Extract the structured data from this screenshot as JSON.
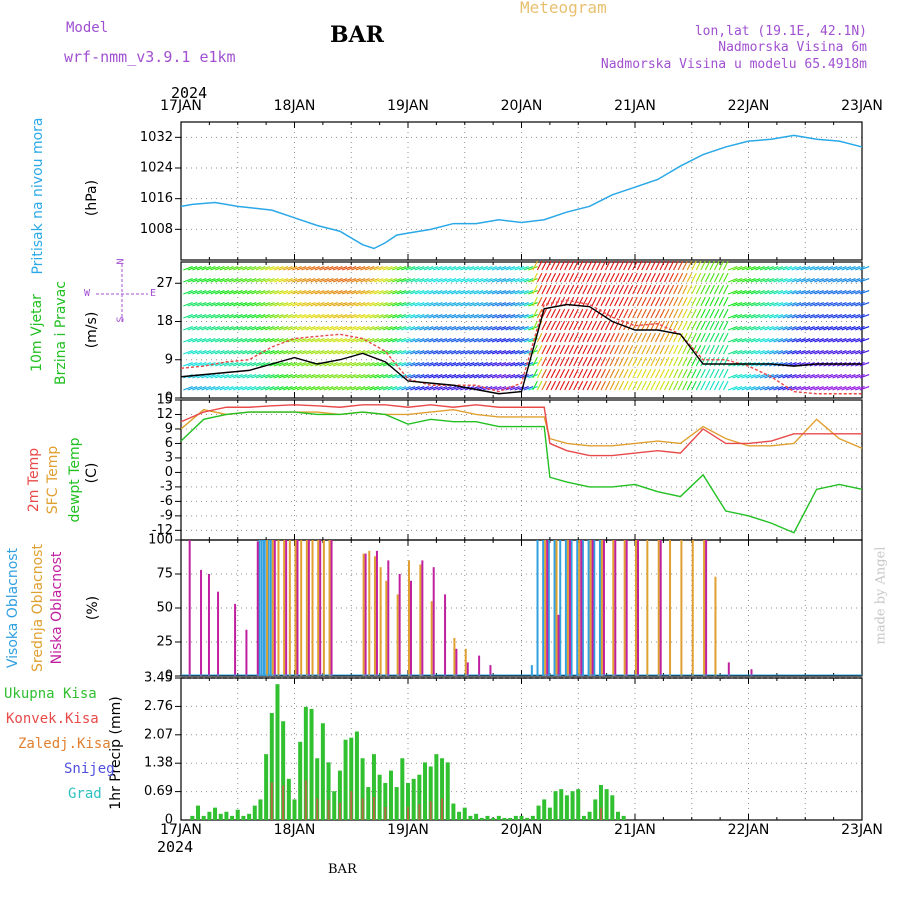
{
  "header": {
    "model_label": "Model",
    "model_name": "wrf-nmm_v3.9.1 e1km",
    "station": "BAR",
    "product": "Meteogram",
    "lonlat": "lon,lat (19.1E, 42.1N)",
    "elevation": "Nadmorska Visina 6m",
    "model_elevation": "Nadmorska Visina u modelu 65.4918m",
    "year": "2024",
    "footer_station": "BAR",
    "credit": "made by Angel"
  },
  "colors": {
    "pressure": "#2aa8e8",
    "wind_speed": "#000000",
    "wind_gust": "#e84a4a",
    "temp2m": "#e84a4a",
    "sfc_temp": "#e0a030",
    "dewpoint": "#22c022",
    "cloud_high": "#30a0e0",
    "cloud_mid": "#e0a030",
    "cloud_low": "#c020a0",
    "precip_total": "#30c030",
    "precip_conv": "#e84a4a",
    "precip_frz": "#e08030",
    "precip_snow": "#5050e0",
    "precip_graup": "#30c0c0",
    "title_purple": "#a050d0"
  },
  "axes": {
    "time_ticks": [
      "17JAN",
      "18JAN",
      "19JAN",
      "20JAN",
      "21JAN",
      "22JAN",
      "23JAN"
    ]
  },
  "labels": {
    "pressure_title": "Pritisak na nivou mora",
    "pressure_unit": "(hPa)",
    "wind_title1": "10m Vjetar",
    "wind_title2": "Brzina i Pravac",
    "wind_unit": "(m/s)",
    "compass_n": "N",
    "compass_s": "S",
    "compass_w": "W",
    "compass_e": "E",
    "temp_title1": "2m Temp",
    "temp_title2": "SFC Temp",
    "temp_title3": "dewpt Temp",
    "temp_unit": "(C)",
    "cloud_title1": "Visoka Oblacnost",
    "cloud_title2": "Srednja Oblacnost",
    "cloud_title3": "Niska Oblacnost",
    "cloud_unit": "(%)",
    "precip_unit": "1hr Precip (mm)",
    "precip_legend": [
      "Ukupna Kisa",
      "Konvek.Kisa",
      "Zaledj.Kisa",
      "Snijeg",
      "Grad"
    ]
  },
  "chart_data": [
    {
      "type": "line",
      "name": "pressure",
      "ylim": [
        1000,
        1036
      ],
      "yticks": [
        1008,
        1016,
        1024,
        1032
      ],
      "x_days": [
        0,
        0.1,
        0.3,
        0.5,
        0.8,
        1.0,
        1.2,
        1.4,
        1.6,
        1.7,
        1.8,
        1.9,
        2.0,
        2.2,
        2.4,
        2.6,
        2.8,
        3.0,
        3.2,
        3.4,
        3.6,
        3.8,
        4.0,
        4.2,
        4.4,
        4.6,
        4.8,
        5.0,
        5.2,
        5.4,
        5.6,
        5.8,
        6.0
      ],
      "values": [
        1014.0,
        1014.5,
        1015.0,
        1014.0,
        1013.0,
        1011.0,
        1009.0,
        1007.5,
        1004.0,
        1003.0,
        1004.5,
        1006.5,
        1007.0,
        1008.0,
        1009.5,
        1009.5,
        1010.5,
        1009.8,
        1010.5,
        1012.5,
        1014.0,
        1017.0,
        1019.0,
        1021.0,
        1024.5,
        1027.5,
        1029.5,
        1031.0,
        1031.5,
        1032.5,
        1031.5,
        1031.0,
        1029.5
      ]
    },
    {
      "type": "line",
      "name": "wind",
      "ylim": [
        0,
        32
      ],
      "yticks": [
        0,
        9,
        18,
        27
      ],
      "x_days": [
        0,
        0.2,
        0.4,
        0.6,
        0.8,
        1.0,
        1.2,
        1.4,
        1.6,
        1.8,
        2.0,
        2.2,
        2.4,
        2.6,
        2.8,
        3.0,
        3.2,
        3.4,
        3.6,
        3.8,
        4.0,
        4.2,
        4.4,
        4.6,
        4.8,
        5.0,
        5.2,
        5.4,
        5.6,
        5.8,
        6.0
      ],
      "speed": [
        5.0,
        5.5,
        6.0,
        6.5,
        8.0,
        9.5,
        8.0,
        9.0,
        10.5,
        8.5,
        4.0,
        3.5,
        3.0,
        2.0,
        1.0,
        1.5,
        21.0,
        22.0,
        21.5,
        18.0,
        16.0,
        16.0,
        15.0,
        8.0,
        8.0,
        8.0,
        8.0,
        7.5,
        8.0,
        8.0,
        8.0
      ],
      "gust": [
        7.0,
        7.5,
        8.5,
        9.0,
        12.0,
        14.0,
        14.5,
        15.0,
        14.0,
        11.0,
        4.5,
        3.0,
        3.0,
        3.0,
        1.5,
        3.5,
        22.0,
        23.0,
        22.0,
        19.0,
        17.0,
        17.5,
        15.0,
        9.0,
        9.0,
        7.5,
        5.0,
        1.5,
        1.0,
        1.0,
        1.0
      ]
    },
    {
      "type": "line",
      "name": "temperature",
      "ylim": [
        -14,
        15
      ],
      "yticks": [
        -12,
        -9,
        -6,
        -3,
        0,
        3,
        6,
        9,
        12,
        15
      ],
      "x_days": [
        0,
        0.2,
        0.4,
        0.6,
        0.8,
        1.0,
        1.2,
        1.4,
        1.6,
        1.8,
        2.0,
        2.2,
        2.4,
        2.6,
        2.8,
        3.0,
        3.2,
        3.25,
        3.4,
        3.6,
        3.8,
        4.0,
        4.2,
        4.4,
        4.6,
        4.8,
        5.0,
        5.2,
        5.4,
        5.6,
        5.8,
        6.0
      ],
      "temp2m": [
        10.5,
        12.5,
        13.5,
        13.5,
        13.8,
        14.0,
        13.8,
        13.5,
        14.0,
        14.0,
        13.5,
        14.0,
        13.5,
        14.0,
        13.5,
        13.5,
        13.5,
        6.0,
        4.5,
        3.5,
        3.5,
        4.0,
        4.5,
        4.0,
        9.0,
        6.0,
        6.0,
        6.5,
        8.0,
        8.0,
        8.0,
        8.0
      ],
      "sfc_temp": [
        9.0,
        13.0,
        12.0,
        12.5,
        12.5,
        12.5,
        12.5,
        12.0,
        12.5,
        12.0,
        12.0,
        12.5,
        13.0,
        12.0,
        11.5,
        11.5,
        11.5,
        7.0,
        6.0,
        5.5,
        5.5,
        6.0,
        6.5,
        6.0,
        9.5,
        7.0,
        5.5,
        5.5,
        6.0,
        11.0,
        7.0,
        5.0
      ],
      "dewpoint": [
        6.5,
        11.0,
        12.0,
        12.5,
        12.5,
        12.5,
        12.0,
        12.0,
        12.5,
        12.0,
        10.0,
        11.0,
        10.5,
        10.5,
        9.5,
        9.5,
        9.5,
        -1.0,
        -2.0,
        -3.0,
        -3.0,
        -2.5,
        -4.0,
        -5.0,
        -0.5,
        -8.0,
        -9.0,
        -10.5,
        -12.5,
        -3.5,
        -2.5,
        -3.5
      ]
    },
    {
      "type": "bar",
      "name": "clouds",
      "ylim": [
        0,
        100
      ],
      "yticks": [
        0,
        25,
        50,
        75,
        100
      ],
      "high": {
        "x_days": [
          0.7,
          0.72,
          0.74,
          0.76,
          0.78,
          0.8,
          3.1,
          3.15,
          3.2,
          3.25,
          3.3,
          3.35,
          3.4,
          3.45,
          3.5,
          3.55,
          3.6,
          3.65,
          3.7
        ],
        "values": [
          100,
          100,
          100,
          100,
          100,
          100,
          8,
          100,
          100,
          100,
          100,
          100,
          100,
          100,
          100,
          100,
          100,
          100,
          100
        ]
      },
      "mid": {
        "x_days": [
          0.75,
          0.8,
          0.85,
          0.9,
          0.95,
          1.0,
          1.05,
          1.1,
          1.15,
          1.2,
          1.25,
          1.3,
          1.6,
          1.65,
          1.7,
          1.75,
          1.8,
          1.9,
          2.0,
          2.1,
          2.2,
          2.4,
          2.5,
          3.2,
          3.3,
          3.4,
          3.5,
          3.6,
          3.7,
          3.8,
          3.9,
          4.0,
          4.1,
          4.2,
          4.3,
          4.4,
          4.5,
          4.6,
          4.7
        ],
        "values": [
          100,
          100,
          100,
          100,
          100,
          100,
          100,
          100,
          100,
          100,
          100,
          100,
          90,
          92,
          88,
          80,
          70,
          60,
          85,
          82,
          55,
          28,
          20,
          100,
          100,
          100,
          100,
          100,
          100,
          100,
          100,
          100,
          100,
          100,
          100,
          100,
          100,
          100,
          73
        ]
      },
      "low": {
        "x_days": [
          0.05,
          0.15,
          0.22,
          0.3,
          0.45,
          0.55,
          0.65,
          0.8,
          0.9,
          1.0,
          1.1,
          1.2,
          1.3,
          1.6,
          1.7,
          1.8,
          1.9,
          2.0,
          2.1,
          2.2,
          2.3,
          2.4,
          2.5,
          2.6,
          2.7,
          3.2,
          3.3,
          3.4,
          3.5,
          3.6,
          3.7,
          3.8,
          3.9,
          4.0,
          4.2,
          4.6,
          4.8,
          5.0
        ],
        "values": [
          100,
          78,
          75,
          62,
          53,
          34,
          99,
          100,
          100,
          100,
          100,
          100,
          100,
          90,
          92,
          85,
          75,
          70,
          85,
          80,
          60,
          20,
          10,
          15,
          8,
          100,
          45,
          100,
          100,
          100,
          100,
          100,
          100,
          100,
          100,
          100,
          10,
          5
        ]
      }
    },
    {
      "type": "bar",
      "name": "precipitation",
      "ylim": [
        0,
        3.45
      ],
      "yticks": [
        0.69,
        1.38,
        2.07,
        2.76,
        3.45
      ],
      "x_days": [
        0.1,
        0.15,
        0.2,
        0.25,
        0.3,
        0.35,
        0.4,
        0.45,
        0.5,
        0.55,
        0.6,
        0.65,
        0.7,
        0.75,
        0.8,
        0.85,
        0.9,
        0.95,
        1.0,
        1.05,
        1.1,
        1.15,
        1.2,
        1.25,
        1.3,
        1.35,
        1.4,
        1.45,
        1.5,
        1.55,
        1.6,
        1.65,
        1.7,
        1.75,
        1.8,
        1.85,
        1.9,
        1.95,
        2.0,
        2.05,
        2.1,
        2.15,
        2.2,
        2.25,
        2.3,
        2.35,
        2.4,
        2.45,
        2.5,
        2.55,
        2.6,
        2.65,
        2.7,
        2.75,
        2.8,
        2.85,
        2.9,
        2.95,
        3.0,
        3.05,
        3.1,
        3.15,
        3.2,
        3.25,
        3.3,
        3.35,
        3.4,
        3.45,
        3.5,
        3.55,
        3.6,
        3.65,
        3.7,
        3.75,
        3.8,
        3.85,
        3.9
      ],
      "values": [
        0.1,
        0.35,
        0.1,
        0.2,
        0.3,
        0.15,
        0.2,
        0.1,
        0.25,
        0.1,
        0.15,
        0.35,
        0.5,
        1.6,
        2.6,
        3.3,
        2.4,
        1.0,
        0.5,
        1.9,
        2.75,
        2.7,
        1.5,
        2.35,
        1.4,
        0.7,
        1.2,
        1.95,
        2.0,
        2.15,
        1.5,
        0.8,
        1.6,
        1.1,
        0.9,
        1.2,
        0.8,
        1.5,
        0.9,
        1.0,
        1.1,
        1.4,
        1.3,
        1.6,
        1.5,
        1.4,
        0.4,
        0.2,
        0.3,
        0.1,
        0.15,
        0.05,
        0.1,
        0.05,
        0.1,
        0.05,
        0.05,
        0.1,
        0.1,
        0.05,
        0.1,
        0.35,
        0.5,
        0.3,
        0.7,
        0.75,
        0.6,
        0.7,
        0.75,
        0.1,
        0.2,
        0.5,
        0.85,
        0.75,
        0.6,
        0.2,
        0.1
      ]
    }
  ]
}
